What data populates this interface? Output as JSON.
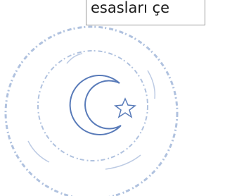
{
  "document": {
    "text_fragment": "esasları çe"
  }
}
